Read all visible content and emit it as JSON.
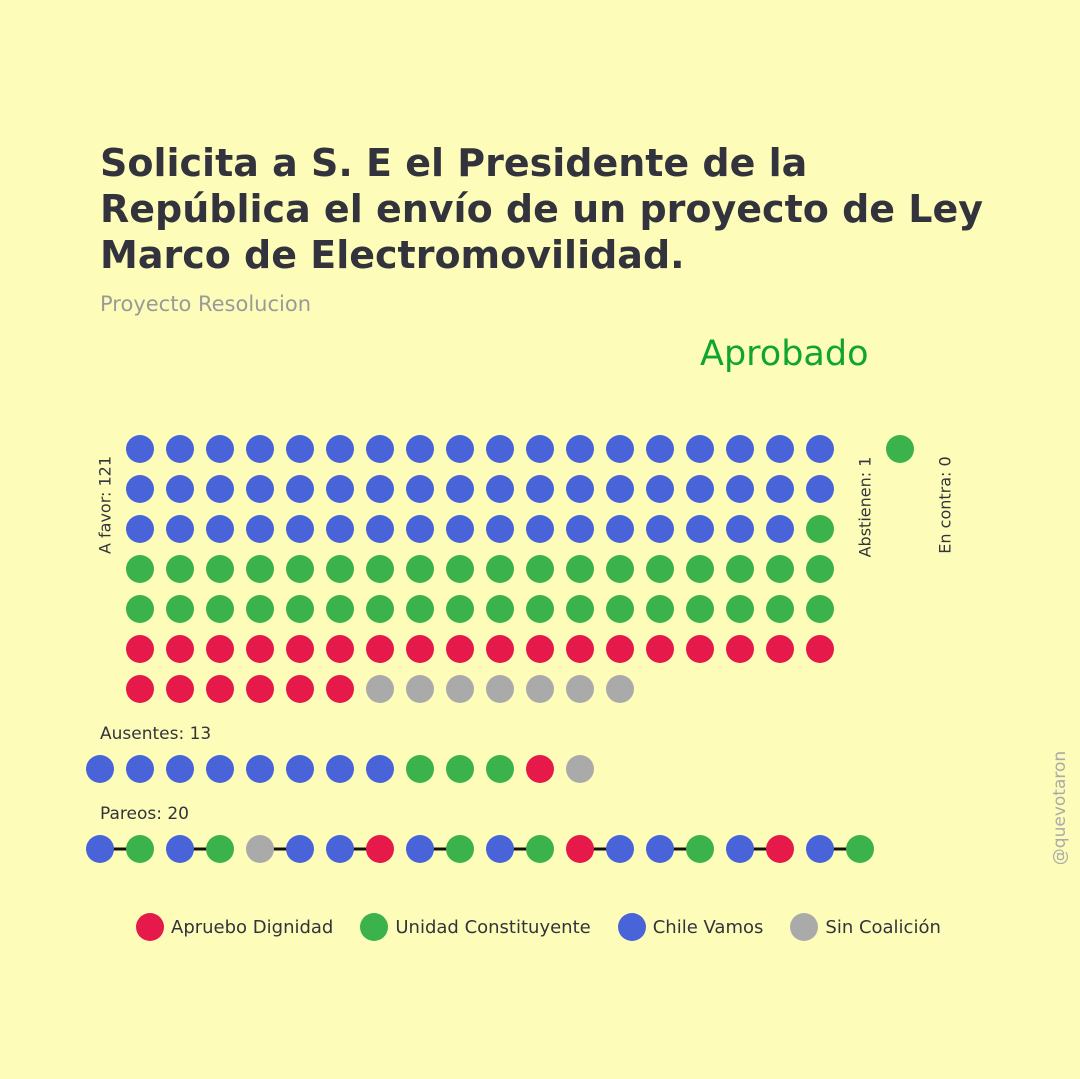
{
  "title": "Solicita a S. E el Presidente de la República el envío de un proyecto de Ley Marco de Electromovilidad.",
  "subtitle": "Proyecto Resolucion",
  "result": {
    "label": "Aprobado",
    "color": "#0fa530"
  },
  "watermark": "@quevotaron",
  "colors": {
    "AD": "#e5194a",
    "UC": "#3bb24b",
    "CV": "#4864d8",
    "SC": "#aaaaaa"
  },
  "chart_data": {
    "type": "dot-matrix",
    "a_favor": {
      "label": "A favor: 121",
      "count": 121,
      "dots": {
        "CV": 53,
        "UC": 37,
        "AD": 24,
        "SC": 7
      }
    },
    "abstienen": {
      "label": "Abstienen: 1",
      "count": 1,
      "dots": [
        "UC"
      ]
    },
    "en_contra": {
      "label": "En contra: 0",
      "count": 0,
      "dots": []
    },
    "ausentes": {
      "label": "Ausentes: 13",
      "count": 13,
      "dots": [
        "CV",
        "CV",
        "CV",
        "CV",
        "CV",
        "CV",
        "CV",
        "CV",
        "UC",
        "UC",
        "UC",
        "AD",
        "SC"
      ]
    },
    "pareos": {
      "label": "Pareos: 20",
      "count": 20,
      "pairs": [
        [
          "CV",
          "UC"
        ],
        [
          "CV",
          "UC"
        ],
        [
          "SC",
          "CV"
        ],
        [
          "CV",
          "AD"
        ],
        [
          "CV",
          "UC"
        ],
        [
          "CV",
          "UC"
        ],
        [
          "AD",
          "CV"
        ],
        [
          "CV",
          "UC"
        ],
        [
          "CV",
          "AD"
        ],
        [
          "CV",
          "UC"
        ]
      ]
    },
    "legend": [
      {
        "key": "AD",
        "label": "Apruebo Dignidad"
      },
      {
        "key": "UC",
        "label": "Unidad Constituyente"
      },
      {
        "key": "CV",
        "label": "Chile Vamos"
      },
      {
        "key": "SC",
        "label": "Sin Coalición"
      }
    ]
  }
}
